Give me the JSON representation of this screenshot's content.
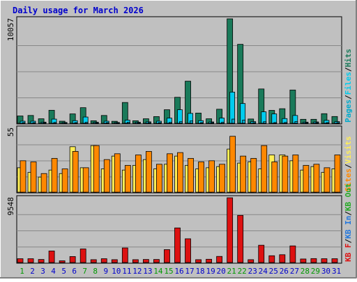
{
  "chart_data": {
    "type": "bar",
    "title": "Daily usage for March 2026",
    "categories": [
      "1",
      "2",
      "3",
      "4",
      "5",
      "6",
      "7",
      "8",
      "9",
      "10",
      "11",
      "12",
      "13",
      "14",
      "15",
      "16",
      "17",
      "18",
      "19",
      "20",
      "21",
      "22",
      "23",
      "24",
      "25",
      "26",
      "27",
      "28",
      "29",
      "30",
      "31"
    ],
    "weekend_days": [
      "1",
      "7",
      "8",
      "14",
      "15",
      "21",
      "22",
      "28",
      "29"
    ],
    "panels": [
      {
        "name": "hits-files-pages",
        "ymax_label": "10057",
        "ymax": 10057,
        "legend": [
          "Pages",
          "/",
          "Files",
          "/",
          "Hits"
        ],
        "series": [
          {
            "name": "Hits",
            "color": "#1a7a5a",
            "values": [
              700,
              750,
              430,
              1250,
              200,
              900,
              1500,
              240,
              750,
              190,
              2000,
              240,
              430,
              640,
              1300,
              2500,
              4050,
              980,
              430,
              1350,
              10057,
              7600,
              410,
              3300,
              1240,
              1400,
              3200,
              380,
              380,
              920,
              650
            ]
          },
          {
            "name": "Files",
            "color": "#00ccee",
            "values": [
              200,
              200,
              110,
              400,
              80,
              250,
              600,
              100,
              200,
              80,
              300,
              100,
              140,
              200,
              500,
              1300,
              950,
              250,
              130,
              500,
              3000,
              1900,
              160,
              1100,
              900,
              450,
              750,
              110,
              130,
              280,
              160
            ]
          },
          {
            "name": "Pages",
            "color": "#00aacc",
            "values": [
              60,
              60,
              40,
              80,
              20,
              50,
              90,
              30,
              40,
              20,
              100,
              30,
              40,
              50,
              80,
              150,
              220,
              60,
              40,
              90,
              400,
              300,
              40,
              150,
              70,
              80,
              160,
              30,
              30,
              50,
              40
            ]
          }
        ]
      },
      {
        "name": "visits-sites",
        "ymax_label": "55",
        "ymax": 55,
        "legend": [
          "Sites",
          "/",
          "Visits"
        ],
        "series": [
          {
            "name": "Visits",
            "color": "#ffee55",
            "values": [
              21,
              17,
              13,
              19,
              16,
              39,
              21,
              40,
              20,
              31,
              19,
              23,
              28,
              20,
              24,
              31,
              23,
              20,
              21,
              22,
              37,
              25,
              26,
              20,
              32,
              32,
              27,
              19,
              22,
              17,
              20
            ]
          },
          {
            "name": "Sites",
            "color": "#ff8800",
            "values": [
              27,
              26,
              16,
              29,
              20,
              35,
              21,
              40,
              28,
              33,
              23,
              32,
              35,
              24,
              33,
              34,
              29,
              26,
              27,
              24,
              48,
              31,
              29,
              40,
              26,
              31,
              32,
              23,
              24,
              21,
              32
            ]
          }
        ]
      },
      {
        "name": "kbytes",
        "ymax_label": "9548",
        "ymax": 9548,
        "legend": [
          "KB F",
          "/",
          "KB In",
          "/",
          "KB Out"
        ],
        "series": [
          {
            "name": "KB F",
            "color": "#dd1111",
            "values": [
              560,
              560,
              450,
              1700,
              250,
              880,
              2000,
              420,
              560,
              420,
              2150,
              420,
              450,
              450,
              1900,
              5100,
              3500,
              420,
              480,
              900,
              9548,
              6950,
              420,
              2550,
              1000,
              1150,
              2450,
              520,
              580,
              560,
              560
            ]
          },
          {
            "name": "KB In",
            "color": "#2277dd",
            "values": [
              0,
              0,
              0,
              0,
              0,
              0,
              0,
              0,
              0,
              0,
              0,
              0,
              0,
              0,
              0,
              0,
              0,
              0,
              0,
              0,
              0,
              0,
              0,
              0,
              0,
              0,
              0,
              0,
              0,
              0,
              0
            ]
          },
          {
            "name": "KB Out",
            "color": "#22aa22",
            "values": [
              0,
              0,
              0,
              0,
              0,
              0,
              0,
              0,
              0,
              0,
              0,
              0,
              0,
              0,
              0,
              0,
              0,
              0,
              0,
              0,
              0,
              0,
              0,
              0,
              0,
              0,
              0,
              0,
              0,
              0,
              0
            ]
          }
        ]
      }
    ],
    "grid": true,
    "colors": {
      "background": "#c0c0c0",
      "plot": "#c0c0c0",
      "title": "#0000cc",
      "weekday_label": "#0000cc",
      "weekend_label": "#009900",
      "grid": "#888888"
    }
  }
}
